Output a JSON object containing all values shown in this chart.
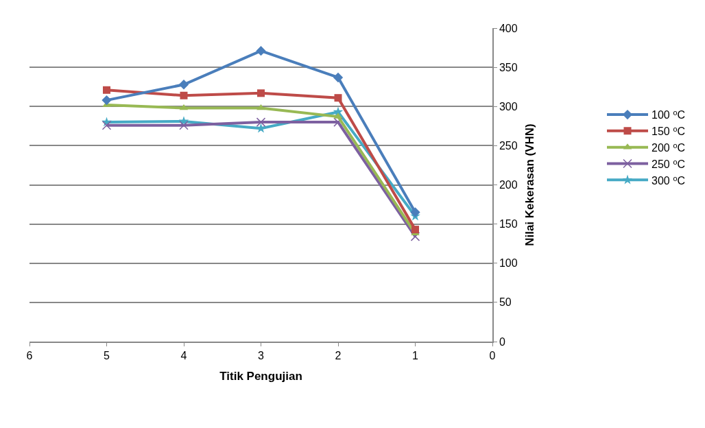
{
  "chart_data": {
    "type": "line",
    "xlabel": "Titik Pengujian",
    "ylabel": "Nilai Kekerasan (VHN)",
    "x": [
      5,
      4,
      3,
      2,
      1
    ],
    "series": [
      {
        "name": "100 ⁰C",
        "color": "#4a7ebb",
        "marker": "diamond",
        "values": [
          308,
          328,
          371,
          337,
          165
        ]
      },
      {
        "name": "150 ⁰C",
        "color": "#be4b48",
        "marker": "square",
        "values": [
          321,
          314,
          317,
          311,
          143
        ]
      },
      {
        "name": "200 ⁰C",
        "color": "#98b954",
        "marker": "triangle",
        "values": [
          302,
          298,
          298,
          287,
          138
        ]
      },
      {
        "name": "250 ⁰C",
        "color": "#7d60a0",
        "marker": "cross",
        "values": [
          276,
          276,
          280,
          280,
          134
        ]
      },
      {
        "name": "300 ⁰C",
        "color": "#46aac5",
        "marker": "star",
        "values": [
          280,
          281,
          272,
          293,
          160
        ]
      }
    ],
    "xlim": [
      6,
      0
    ],
    "xticks": [
      6,
      5,
      4,
      3,
      2,
      1,
      0
    ],
    "ylim": [
      0,
      400
    ],
    "yticks": [
      0,
      50,
      100,
      150,
      200,
      250,
      300,
      350,
      400
    ],
    "grid": "y",
    "legend": "right",
    "line_style": "solid"
  }
}
